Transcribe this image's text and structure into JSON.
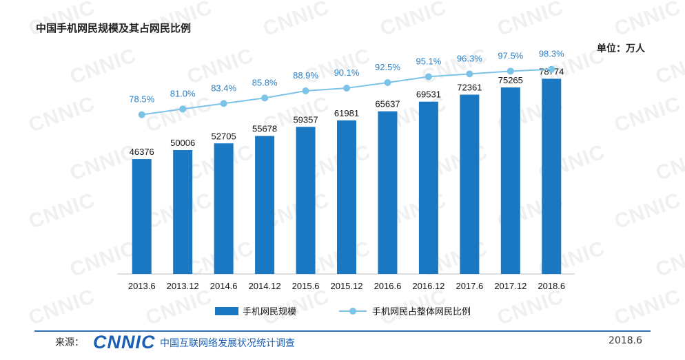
{
  "header": {
    "title": "中国手机网民规模及其占网民比例",
    "unit": "单位：万人"
  },
  "footer": {
    "source_label": "来源：",
    "logo_text": "CNNIC",
    "source_org": "中国互联网络发展状况统计调查",
    "date": "2018.6"
  },
  "colors": {
    "bar": "#1a78c2",
    "line": "#7cc3e8",
    "pct_label": "#2a7fc4",
    "watermark": "#eef0f2"
  },
  "chart_data": {
    "type": "bar",
    "categories": [
      "2013.6",
      "2013.12",
      "2014.6",
      "2014.12",
      "2015.6",
      "2015.12",
      "2016.6",
      "2016.12",
      "2017.6",
      "2017.12",
      "2018.6"
    ],
    "series": [
      {
        "name": "手机网民规模",
        "type": "bar",
        "values": [
          46376,
          50006,
          52705,
          55678,
          59357,
          61981,
          65637,
          69531,
          72361,
          75265,
          78774
        ]
      },
      {
        "name": "手机网民占整体网民比例",
        "type": "line",
        "values": [
          78.5,
          81.0,
          83.4,
          85.8,
          88.9,
          90.1,
          92.5,
          95.1,
          96.3,
          97.5,
          98.3
        ],
        "labels": [
          "78.5%",
          "81.0%",
          "83.4%",
          "85.8%",
          "88.9%",
          "90.1%",
          "92.5%",
          "95.1%",
          "96.3%",
          "97.5%",
          "98.3%"
        ]
      }
    ],
    "ylim": [
      0,
      80000
    ],
    "grid": false,
    "legend_position": "bottom"
  }
}
